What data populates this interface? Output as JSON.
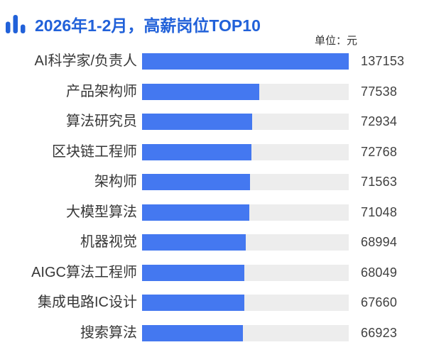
{
  "header": {
    "icon": "bar-chart-icon"
  },
  "colors": {
    "title-color": "#2161d9",
    "bar-color": "#4478f0",
    "track-color": "#ededed",
    "label-color": "#383838",
    "value-color": "#404040",
    "unit-color": "#333333",
    "bg-color": "#ffffff"
  },
  "chart_data": {
    "type": "bar",
    "orientation": "horizontal",
    "title": "2026年1-2月，高薪岗位TOP10",
    "unit_label": "单位：元",
    "categories": [
      "AI科学家/负责人",
      "产品架构师",
      "算法研究员",
      "区块链工程师",
      "架构师",
      "大模型算法",
      "机器视觉",
      "AIGC算法工程师",
      "集成电路IC设计",
      "搜索算法"
    ],
    "values": [
      137153,
      77538,
      72934,
      72768,
      71563,
      71048,
      68994,
      68049,
      67660,
      66923
    ],
    "xlabel": "",
    "ylabel": "",
    "xlim": [
      0,
      137153
    ],
    "grid": false,
    "legend": "none",
    "value_labels_shown": true
  }
}
